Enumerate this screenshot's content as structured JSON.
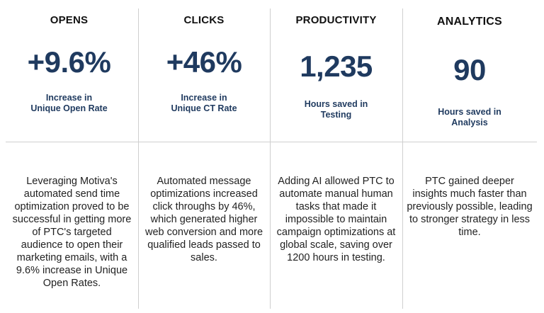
{
  "cards": [
    {
      "label": "OPENS",
      "value": "+9.6%",
      "sub_line1": "Increase in",
      "sub_line2": "Unique Open Rate",
      "description": "Leveraging Motiva's automated send time optimization proved to be successful in getting more of PTC's targeted audience to open their marketing emails, with a 9.6% increase in Unique Open Rates."
    },
    {
      "label": "CLICKS",
      "value": "+46%",
      "sub_line1": "Increase in",
      "sub_line2": "Unique CT Rate",
      "description": "Automated message optimizations increased click throughs by 46%, which generated higher web conversion and more qualified leads passed to sales."
    },
    {
      "label": "PRODUCTIVITY",
      "value": "1,235",
      "sub_line1": "Hours saved in",
      "sub_line2": "Testing",
      "description": "Adding AI allowed PTC to automate manual human tasks that made it impossible to maintain campaign optimizations at global scale, saving over 1200 hours in testing."
    },
    {
      "label": "ANALYTICS",
      "value": "90",
      "sub_line1": "Hours saved in",
      "sub_line2": "Analysis",
      "description": "PTC gained deeper insights much faster than previously possible, leading to stronger strategy in less time."
    }
  ],
  "colors": {
    "value": "#1f3a5f",
    "divider": "#cfcfcf"
  }
}
